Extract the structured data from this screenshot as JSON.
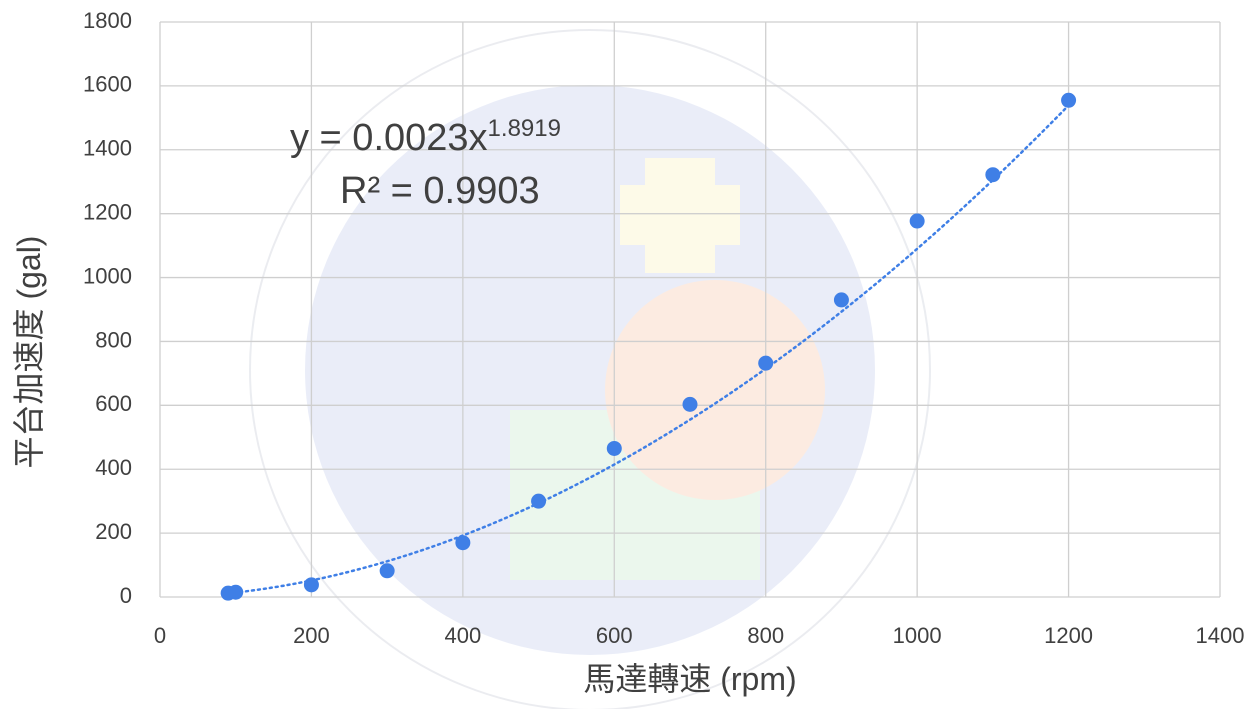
{
  "chart_data": {
    "type": "scatter",
    "x_label": "馬達轉速 (rpm)",
    "y_label": "平台加速度 (gal)",
    "x": [
      90,
      100,
      200,
      300,
      400,
      500,
      600,
      700,
      800,
      900,
      1000,
      1100,
      1200
    ],
    "values": [
      12,
      15,
      38,
      82,
      170,
      300,
      465,
      603,
      732,
      930,
      1177,
      1322,
      1555
    ],
    "color": "#3f7fe6",
    "xlim": [
      0,
      1400
    ],
    "xticks": [
      0,
      200,
      400,
      600,
      800,
      1000,
      1200,
      1400
    ],
    "ylim": [
      0,
      1800
    ],
    "yticks": [
      0,
      200,
      400,
      600,
      800,
      1000,
      1200,
      1400,
      1600,
      1800
    ],
    "grid": true,
    "trendline": {
      "coefficient": 0.0023,
      "exponent": 1.8919,
      "equation_base": "y = 0.0023x",
      "r_squared_label": "R² = 0.9903"
    }
  }
}
